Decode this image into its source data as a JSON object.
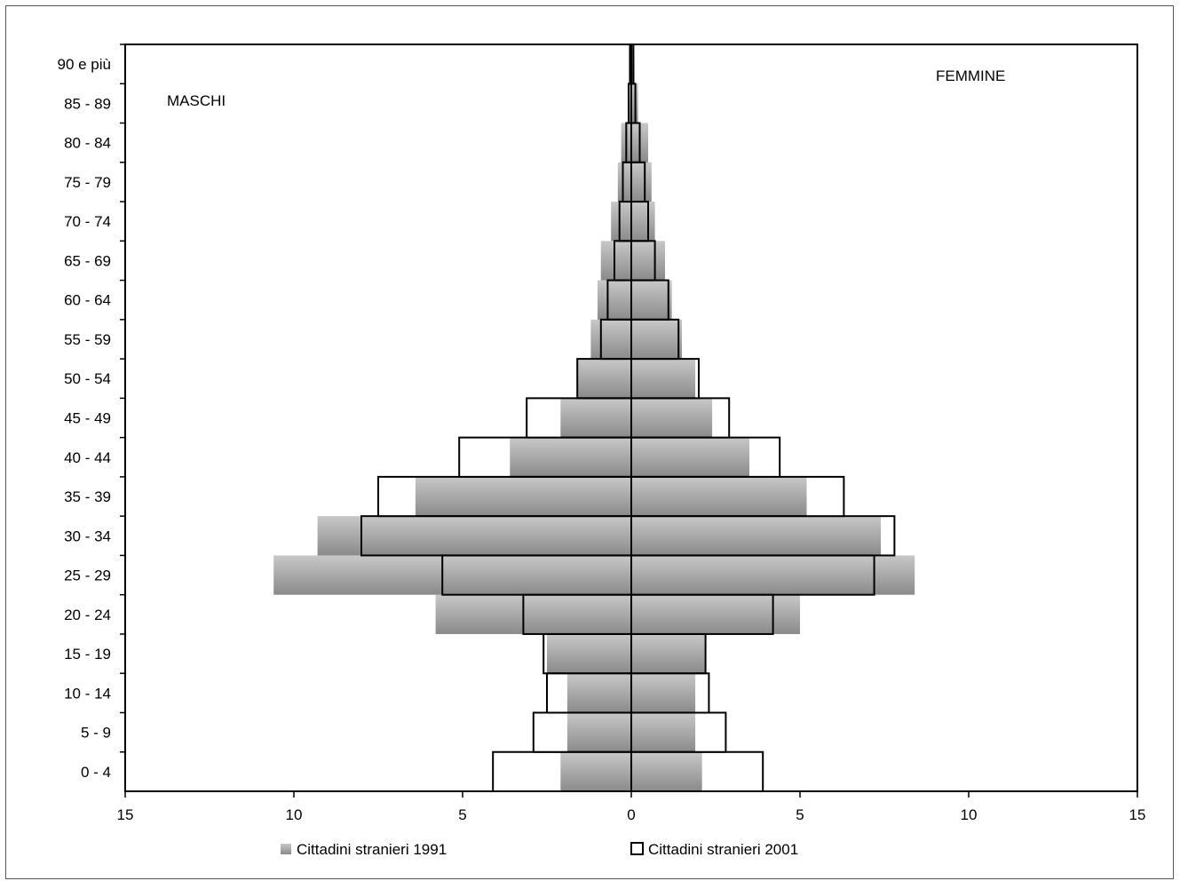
{
  "chart_data": {
    "type": "bar",
    "orientation": "horizontal",
    "subtype": "population-pyramid",
    "categories": [
      "0 - 4",
      "5 - 9",
      "10 - 14",
      "15 - 19",
      "20 - 24",
      "25 - 29",
      "30 - 34",
      "35 - 39",
      "40 - 44",
      "45 - 49",
      "50 - 54",
      "55 - 59",
      "60 - 64",
      "65 - 69",
      "70 - 74",
      "75 - 79",
      "80 - 84",
      "85 - 89",
      "90 e più"
    ],
    "series": [
      {
        "name": "Cittadini stranieri 1991",
        "style": "gradient-filled",
        "maschi": [
          2.1,
          1.9,
          1.9,
          2.5,
          5.8,
          10.6,
          9.3,
          6.4,
          3.6,
          2.1,
          1.6,
          1.2,
          1.0,
          0.9,
          0.6,
          0.4,
          0.3,
          0.1,
          0.05
        ],
        "femmine": [
          2.1,
          1.9,
          1.9,
          2.2,
          5.0,
          8.4,
          7.4,
          5.2,
          3.5,
          2.4,
          1.9,
          1.5,
          1.2,
          1.0,
          0.7,
          0.6,
          0.5,
          0.2,
          0.1
        ]
      },
      {
        "name": "Cittadini stranieri 2001",
        "style": "outlined",
        "maschi": [
          4.1,
          2.9,
          2.5,
          2.6,
          3.2,
          5.6,
          8.0,
          7.5,
          5.1,
          3.1,
          1.6,
          0.9,
          0.7,
          0.5,
          0.35,
          0.25,
          0.15,
          0.08,
          0.04
        ],
        "femmine": [
          3.9,
          2.8,
          2.3,
          2.2,
          4.2,
          7.2,
          7.8,
          6.3,
          4.4,
          2.9,
          2.0,
          1.4,
          1.1,
          0.7,
          0.5,
          0.4,
          0.25,
          0.12,
          0.06
        ]
      }
    ],
    "xlim": [
      -15,
      15
    ],
    "xticks": [
      {
        "value": -15,
        "label": "15"
      },
      {
        "value": -10,
        "label": "10"
      },
      {
        "value": -5,
        "label": "5"
      },
      {
        "value": 0,
        "label": "0"
      },
      {
        "value": 5,
        "label": "5"
      },
      {
        "value": 10,
        "label": "10"
      },
      {
        "value": 15,
        "label": "15"
      }
    ],
    "annotations": {
      "left": "MASCHI",
      "right": "FEMMINE"
    },
    "legend_position": "bottom",
    "grid": false,
    "colors": {
      "series1991_light": "#c8c8c8",
      "series1991_dark": "#8a8a8a",
      "series2001_fill": "#ffffff",
      "outline": "#000000"
    }
  }
}
